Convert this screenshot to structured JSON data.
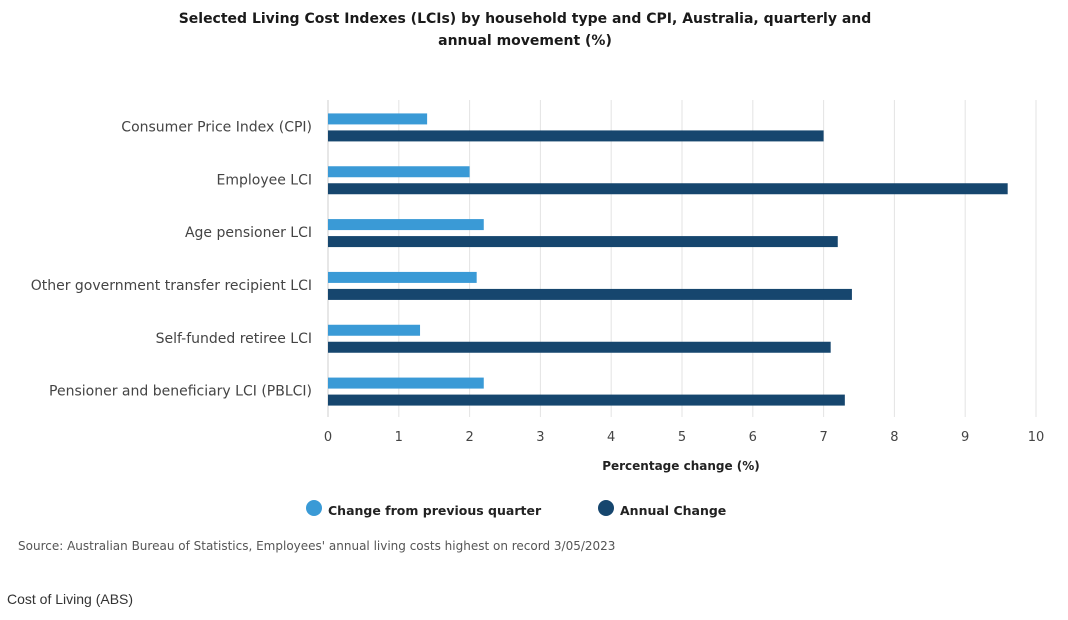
{
  "chart_data": {
    "type": "bar",
    "orientation": "horizontal",
    "title": "Selected Living Cost Indexes (LCIs) by household type and CPI, Australia, quarterly and annual movement (%)",
    "categories": [
      "Consumer Price Index (CPI)",
      "Employee LCI",
      "Age pensioner LCI",
      "Other government transfer recipient LCI",
      "Self-funded retiree LCI",
      "Pensioner and beneficiary LCI (PBLCI)"
    ],
    "series": [
      {
        "name": "Change from previous quarter",
        "color": "#3a9ad6",
        "values": [
          1.4,
          2.0,
          2.2,
          2.1,
          1.3,
          2.2
        ]
      },
      {
        "name": "Annual Change",
        "color": "#16466e",
        "values": [
          7.0,
          9.6,
          7.2,
          7.4,
          7.1,
          7.3
        ]
      }
    ],
    "xlabel": "Percentage change (%)",
    "ylabel": "",
    "xlim": [
      0,
      10
    ],
    "xticks": [
      "0",
      "1",
      "2",
      "3",
      "4",
      "5",
      "6",
      "7",
      "8",
      "9",
      "10"
    ],
    "grid": true,
    "legend": "bottom"
  },
  "source": "Source: Australian Bureau of Statistics, Employees' annual living costs highest on record 3/05/2023",
  "caption": "Cost of Living (ABS)"
}
